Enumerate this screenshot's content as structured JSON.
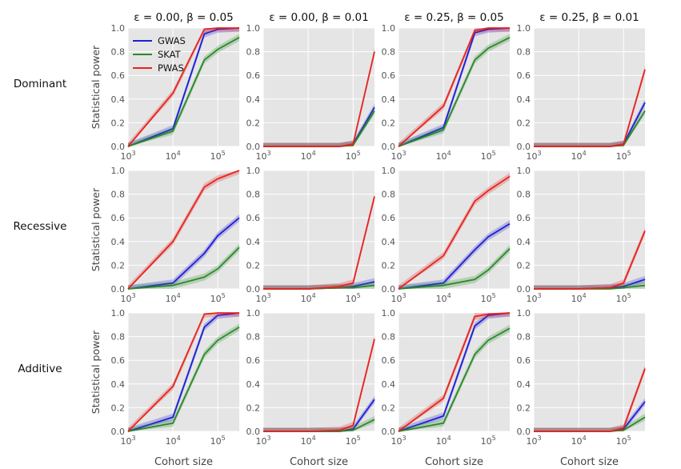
{
  "figure": {
    "legend_placement": "upper-left",
    "grid": true,
    "row_labels": [
      "Dominant",
      "Recessive",
      "Additive"
    ],
    "column_titles": [
      "ε = 0.00, β = 0.05",
      "ε = 0.00, β = 0.01",
      "ε = 0.25, β = 0.05",
      "ε = 0.25, β = 0.01"
    ],
    "ylabel": "Statistical power",
    "xlabel": "Cohort size",
    "colors": {
      "GWAS": "#1f1fd6",
      "SKAT": "#2a8a2a",
      "PWAS": "#e8231f"
    }
  },
  "chart_data": [
    {
      "type": "line",
      "row": "Dominant",
      "column": "ε = 0.00, β = 0.05",
      "xscale": "log",
      "xlim": [
        1000,
        300000
      ],
      "ylim": [
        0,
        1
      ],
      "x": [
        1000,
        10000,
        50000,
        100000,
        300000
      ],
      "series": [
        {
          "name": "GWAS",
          "values": [
            0.0,
            0.15,
            0.95,
            0.99,
            1.0
          ]
        },
        {
          "name": "SKAT",
          "values": [
            0.0,
            0.13,
            0.73,
            0.82,
            0.92
          ]
        },
        {
          "name": "PWAS",
          "values": [
            0.0,
            0.45,
            0.99,
            1.0,
            1.0
          ]
        }
      ]
    },
    {
      "type": "line",
      "row": "Dominant",
      "column": "ε = 0.00, β = 0.01",
      "xscale": "log",
      "xlim": [
        1000,
        300000
      ],
      "ylim": [
        0,
        1
      ],
      "x": [
        1000,
        10000,
        50000,
        100000,
        300000
      ],
      "series": [
        {
          "name": "GWAS",
          "values": [
            0.0,
            0.0,
            0.0,
            0.02,
            0.33
          ]
        },
        {
          "name": "SKAT",
          "values": [
            0.0,
            0.0,
            0.0,
            0.01,
            0.3
          ]
        },
        {
          "name": "PWAS",
          "values": [
            0.0,
            0.0,
            0.0,
            0.02,
            0.8
          ]
        }
      ]
    },
    {
      "type": "line",
      "row": "Dominant",
      "column": "ε = 0.25, β = 0.05",
      "xscale": "log",
      "xlim": [
        1000,
        300000
      ],
      "ylim": [
        0,
        1
      ],
      "x": [
        1000,
        10000,
        50000,
        100000,
        300000
      ],
      "series": [
        {
          "name": "GWAS",
          "values": [
            0.0,
            0.16,
            0.96,
            0.99,
            1.0
          ]
        },
        {
          "name": "SKAT",
          "values": [
            0.0,
            0.14,
            0.73,
            0.83,
            0.92
          ]
        },
        {
          "name": "PWAS",
          "values": [
            0.0,
            0.34,
            0.98,
            1.0,
            1.0
          ]
        }
      ]
    },
    {
      "type": "line",
      "row": "Dominant",
      "column": "ε = 0.25, β = 0.01",
      "xscale": "log",
      "xlim": [
        1000,
        300000
      ],
      "ylim": [
        0,
        1
      ],
      "x": [
        1000,
        10000,
        50000,
        100000,
        300000
      ],
      "series": [
        {
          "name": "GWAS",
          "values": [
            0.0,
            0.0,
            0.0,
            0.02,
            0.37
          ]
        },
        {
          "name": "SKAT",
          "values": [
            0.0,
            0.0,
            0.0,
            0.01,
            0.3
          ]
        },
        {
          "name": "PWAS",
          "values": [
            0.0,
            0.0,
            0.0,
            0.02,
            0.65
          ]
        }
      ]
    },
    {
      "type": "line",
      "row": "Recessive",
      "column": "ε = 0.00, β = 0.05",
      "xscale": "log",
      "xlim": [
        1000,
        300000
      ],
      "ylim": [
        0,
        1
      ],
      "x": [
        1000,
        10000,
        50000,
        100000,
        300000
      ],
      "series": [
        {
          "name": "GWAS",
          "values": [
            0.0,
            0.05,
            0.3,
            0.45,
            0.6
          ]
        },
        {
          "name": "SKAT",
          "values": [
            0.0,
            0.03,
            0.1,
            0.17,
            0.35
          ]
        },
        {
          "name": "PWAS",
          "values": [
            0.0,
            0.4,
            0.86,
            0.93,
            1.0
          ]
        }
      ]
    },
    {
      "type": "line",
      "row": "Recessive",
      "column": "ε = 0.00, β = 0.01",
      "xscale": "log",
      "xlim": [
        1000,
        300000
      ],
      "ylim": [
        0,
        1
      ],
      "x": [
        1000,
        10000,
        50000,
        100000,
        300000
      ],
      "series": [
        {
          "name": "GWAS",
          "values": [
            0.0,
            0.0,
            0.01,
            0.02,
            0.06
          ]
        },
        {
          "name": "SKAT",
          "values": [
            0.0,
            0.0,
            0.01,
            0.01,
            0.03
          ]
        },
        {
          "name": "PWAS",
          "values": [
            0.0,
            0.0,
            0.02,
            0.05,
            0.78
          ]
        }
      ]
    },
    {
      "type": "line",
      "row": "Recessive",
      "column": "ε = 0.25, β = 0.05",
      "xscale": "log",
      "xlim": [
        1000,
        300000
      ],
      "ylim": [
        0,
        1
      ],
      "x": [
        1000,
        10000,
        50000,
        100000,
        300000
      ],
      "series": [
        {
          "name": "GWAS",
          "values": [
            0.0,
            0.05,
            0.33,
            0.44,
            0.55
          ]
        },
        {
          "name": "SKAT",
          "values": [
            0.0,
            0.03,
            0.08,
            0.16,
            0.34
          ]
        },
        {
          "name": "PWAS",
          "values": [
            0.0,
            0.28,
            0.74,
            0.83,
            0.95
          ]
        }
      ]
    },
    {
      "type": "line",
      "row": "Recessive",
      "column": "ε = 0.25, β = 0.01",
      "xscale": "log",
      "xlim": [
        1000,
        300000
      ],
      "ylim": [
        0,
        1
      ],
      "x": [
        1000,
        10000,
        50000,
        100000,
        300000
      ],
      "series": [
        {
          "name": "GWAS",
          "values": [
            0.0,
            0.0,
            0.01,
            0.02,
            0.08
          ]
        },
        {
          "name": "SKAT",
          "values": [
            0.0,
            0.0,
            0.0,
            0.01,
            0.03
          ]
        },
        {
          "name": "PWAS",
          "values": [
            0.0,
            0.0,
            0.01,
            0.05,
            0.49
          ]
        }
      ]
    },
    {
      "type": "line",
      "row": "Additive",
      "column": "ε = 0.00, β = 0.05",
      "xscale": "log",
      "xlim": [
        1000,
        300000
      ],
      "ylim": [
        0,
        1
      ],
      "x": [
        1000,
        10000,
        50000,
        100000,
        300000
      ],
      "series": [
        {
          "name": "GWAS",
          "values": [
            0.0,
            0.12,
            0.88,
            0.98,
            1.0
          ]
        },
        {
          "name": "SKAT",
          "values": [
            0.0,
            0.07,
            0.65,
            0.77,
            0.88
          ]
        },
        {
          "name": "PWAS",
          "values": [
            0.0,
            0.38,
            0.99,
            1.0,
            1.0
          ]
        }
      ]
    },
    {
      "type": "line",
      "row": "Additive",
      "column": "ε = 0.00, β = 0.01",
      "xscale": "log",
      "xlim": [
        1000,
        300000
      ],
      "ylim": [
        0,
        1
      ],
      "x": [
        1000,
        10000,
        50000,
        100000,
        300000
      ],
      "series": [
        {
          "name": "GWAS",
          "values": [
            0.0,
            0.0,
            0.0,
            0.02,
            0.27
          ]
        },
        {
          "name": "SKAT",
          "values": [
            0.0,
            0.0,
            0.0,
            0.01,
            0.1
          ]
        },
        {
          "name": "PWAS",
          "values": [
            0.0,
            0.0,
            0.01,
            0.05,
            0.78
          ]
        }
      ]
    },
    {
      "type": "line",
      "row": "Additive",
      "column": "ε = 0.25, β = 0.05",
      "xscale": "log",
      "xlim": [
        1000,
        300000
      ],
      "ylim": [
        0,
        1
      ],
      "x": [
        1000,
        10000,
        50000,
        100000,
        300000
      ],
      "series": [
        {
          "name": "GWAS",
          "values": [
            0.0,
            0.13,
            0.89,
            0.98,
            1.0
          ]
        },
        {
          "name": "SKAT",
          "values": [
            0.0,
            0.07,
            0.65,
            0.77,
            0.87
          ]
        },
        {
          "name": "PWAS",
          "values": [
            0.0,
            0.28,
            0.97,
            0.99,
            1.0
          ]
        }
      ]
    },
    {
      "type": "line",
      "row": "Additive",
      "column": "ε = 0.25, β = 0.01",
      "xscale": "log",
      "xlim": [
        1000,
        300000
      ],
      "ylim": [
        0,
        1
      ],
      "x": [
        1000,
        10000,
        50000,
        100000,
        300000
      ],
      "series": [
        {
          "name": "GWAS",
          "values": [
            0.0,
            0.0,
            0.0,
            0.02,
            0.25
          ]
        },
        {
          "name": "SKAT",
          "values": [
            0.0,
            0.0,
            0.0,
            0.01,
            0.12
          ]
        },
        {
          "name": "PWAS",
          "values": [
            0.0,
            0.0,
            0.0,
            0.03,
            0.53
          ]
        }
      ]
    }
  ]
}
